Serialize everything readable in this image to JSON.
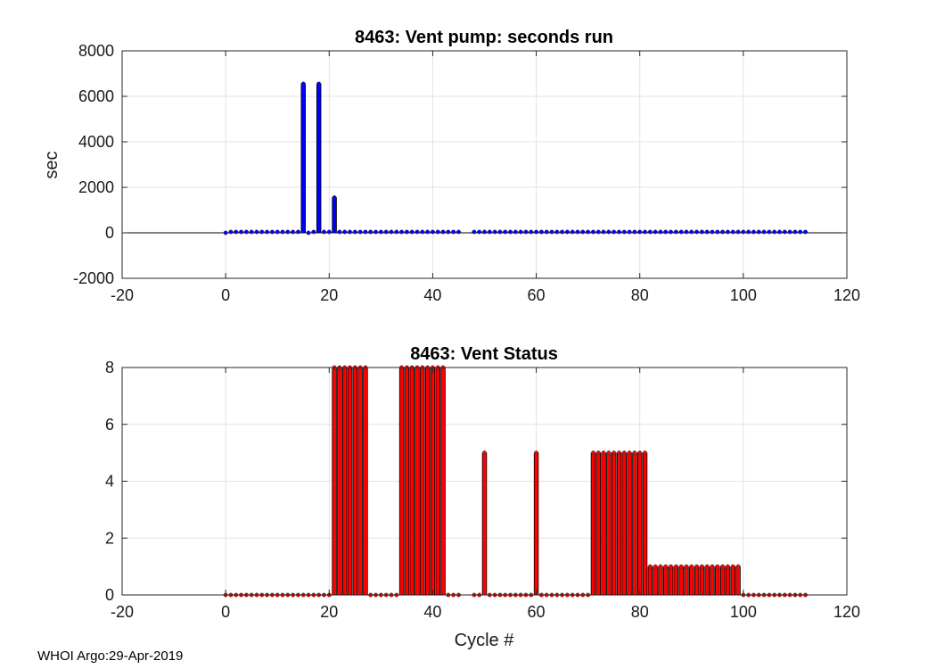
{
  "footer": "WHOI Argo:29-Apr-2019",
  "chart_data": [
    {
      "type": "bar",
      "title": "8463: Vent pump: seconds run",
      "xlabel": "",
      "ylabel": "sec",
      "xlim": [
        -20,
        120
      ],
      "ylim": [
        -2000,
        8000
      ],
      "xticks": [
        "-20",
        "0",
        "20",
        "40",
        "60",
        "80",
        "100",
        "120"
      ],
      "yticks": [
        "-2000",
        "0",
        "2000",
        "4000",
        "6000",
        "8000"
      ],
      "grid": true,
      "color": "#0000ff",
      "x": [
        0,
        1,
        2,
        3,
        4,
        5,
        6,
        7,
        8,
        9,
        10,
        11,
        12,
        13,
        14,
        15,
        16,
        17,
        18,
        19,
        20,
        21,
        22,
        23,
        24,
        25,
        26,
        27,
        28,
        29,
        30,
        31,
        32,
        33,
        34,
        35,
        36,
        37,
        38,
        39,
        40,
        41,
        42,
        43,
        44,
        45,
        48,
        49,
        50,
        51,
        52,
        53,
        54,
        55,
        56,
        57,
        58,
        59,
        60,
        61,
        62,
        63,
        64,
        65,
        66,
        67,
        68,
        69,
        70,
        71,
        72,
        73,
        74,
        75,
        76,
        77,
        78,
        79,
        80,
        81,
        82,
        83,
        84,
        85,
        86,
        87,
        88,
        89,
        90,
        91,
        92,
        93,
        94,
        95,
        96,
        97,
        98,
        99,
        100,
        101,
        102,
        103,
        104,
        105,
        106,
        107,
        108,
        109,
        110,
        111,
        112
      ],
      "values": [
        0,
        40,
        40,
        40,
        40,
        40,
        40,
        40,
        40,
        40,
        40,
        40,
        40,
        40,
        40,
        6550,
        0,
        40,
        6550,
        40,
        40,
        1550,
        40,
        40,
        40,
        40,
        40,
        40,
        40,
        40,
        40,
        40,
        40,
        40,
        40,
        40,
        40,
        40,
        40,
        40,
        40,
        40,
        40,
        40,
        40,
        40,
        40,
        40,
        40,
        40,
        40,
        40,
        40,
        40,
        40,
        40,
        40,
        40,
        40,
        40,
        40,
        40,
        40,
        40,
        40,
        40,
        40,
        40,
        40,
        40,
        40,
        40,
        40,
        40,
        40,
        40,
        40,
        40,
        40,
        40,
        40,
        40,
        40,
        40,
        40,
        40,
        40,
        40,
        40,
        40,
        40,
        40,
        40,
        40,
        40,
        40,
        40,
        40,
        40,
        40,
        40,
        40,
        40,
        40,
        40,
        40,
        40,
        40,
        40,
        40,
        40
      ]
    },
    {
      "type": "bar",
      "title": "8463: Vent Status",
      "xlabel": "Cycle #",
      "ylabel": "",
      "xlim": [
        -20,
        120
      ],
      "ylim": [
        0,
        8
      ],
      "xticks": [
        "-20",
        "0",
        "20",
        "40",
        "60",
        "80",
        "100",
        "120"
      ],
      "yticks": [
        "0",
        "2",
        "4",
        "6",
        "8"
      ],
      "grid": true,
      "color": "#ff0000",
      "x": [
        0,
        1,
        2,
        3,
        4,
        5,
        6,
        7,
        8,
        9,
        10,
        11,
        12,
        13,
        14,
        15,
        16,
        17,
        18,
        19,
        20,
        21,
        22,
        23,
        24,
        25,
        26,
        27,
        28,
        29,
        30,
        31,
        32,
        33,
        34,
        35,
        36,
        37,
        38,
        39,
        40,
        41,
        42,
        43,
        44,
        45,
        48,
        49,
        50,
        51,
        52,
        53,
        54,
        55,
        56,
        57,
        58,
        59,
        60,
        61,
        62,
        63,
        64,
        65,
        66,
        67,
        68,
        69,
        70,
        71,
        72,
        73,
        74,
        75,
        76,
        77,
        78,
        79,
        80,
        81,
        82,
        83,
        84,
        85,
        86,
        87,
        88,
        89,
        90,
        91,
        92,
        93,
        94,
        95,
        96,
        97,
        98,
        99,
        100,
        101,
        102,
        103,
        104,
        105,
        106,
        107,
        108,
        109,
        110,
        111,
        112
      ],
      "values": [
        0,
        0,
        0,
        0,
        0,
        0,
        0,
        0,
        0,
        0,
        0,
        0,
        0,
        0,
        0,
        0,
        0,
        0,
        0,
        0,
        0,
        8,
        8,
        8,
        8,
        8,
        8,
        8,
        0,
        0,
        0,
        0,
        0,
        0,
        8,
        8,
        8,
        8,
        8,
        8,
        8,
        8,
        8,
        0,
        0,
        0,
        0,
        0,
        5,
        0,
        0,
        0,
        0,
        0,
        0,
        0,
        0,
        0,
        5,
        0,
        0,
        0,
        0,
        0,
        0,
        0,
        0,
        0,
        0,
        5,
        5,
        5,
        5,
        5,
        5,
        5,
        5,
        5,
        5,
        5,
        1,
        1,
        1,
        1,
        1,
        1,
        1,
        1,
        1,
        1,
        1,
        1,
        1,
        1,
        1,
        1,
        1,
        1,
        0,
        0,
        0,
        0,
        0,
        0,
        0,
        0,
        0,
        0,
        0,
        0,
        0
      ]
    }
  ]
}
